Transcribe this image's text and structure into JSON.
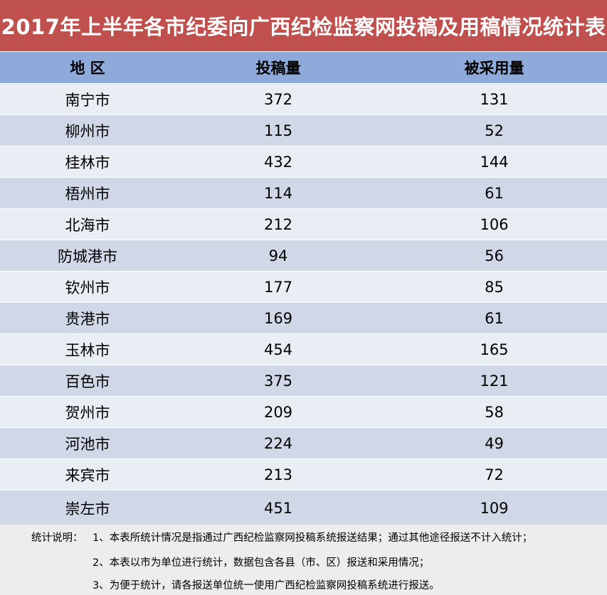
{
  "title": "2017年上半年各市纪委向广西纪检监察网投稿及用稿情况统计表",
  "headers": {
    "region": "地  区",
    "submitted": "投稿量",
    "adopted": "被采用量"
  },
  "rows": [
    {
      "region": "南宁市",
      "submitted": "372",
      "adopted": "131"
    },
    {
      "region": "柳州市",
      "submitted": "115",
      "adopted": "52"
    },
    {
      "region": "桂林市",
      "submitted": "432",
      "adopted": "144"
    },
    {
      "region": "梧州市",
      "submitted": "114",
      "adopted": "61"
    },
    {
      "region": "北海市",
      "submitted": "212",
      "adopted": "106"
    },
    {
      "region": "防城港市",
      "submitted": "94",
      "adopted": "56"
    },
    {
      "region": "钦州市",
      "submitted": "177",
      "adopted": "85"
    },
    {
      "region": "贵港市",
      "submitted": "169",
      "adopted": "61"
    },
    {
      "region": "玉林市",
      "submitted": "454",
      "adopted": "165"
    },
    {
      "region": "百色市",
      "submitted": "375",
      "adopted": "121"
    },
    {
      "region": "贺州市",
      "submitted": "209",
      "adopted": "58"
    },
    {
      "region": "河池市",
      "submitted": "224",
      "adopted": "49"
    },
    {
      "region": "来宾市",
      "submitted": "213",
      "adopted": "72"
    },
    {
      "region": "崇左市",
      "submitted": "451",
      "adopted": "109"
    }
  ],
  "notes": {
    "label": "统计说明：",
    "lines": [
      "1、本表所统计情况是指通过广西纪检监察网投稿系统报送结果；通过其他途径报送不计入统计；",
      "2、本表以市为单位进行统计，数据包含各县（市、区）报送和采用情况；",
      "3、为便于统计，请各报送单位统一使用广西纪检监察网投稿系统进行报送。"
    ]
  },
  "colors": {
    "title_bg": "#c0504d",
    "header_bg": "#8eaadb",
    "row_light": "#e9edf4",
    "row_dark": "#d0d8e8",
    "notes_bg": "#ededed"
  }
}
